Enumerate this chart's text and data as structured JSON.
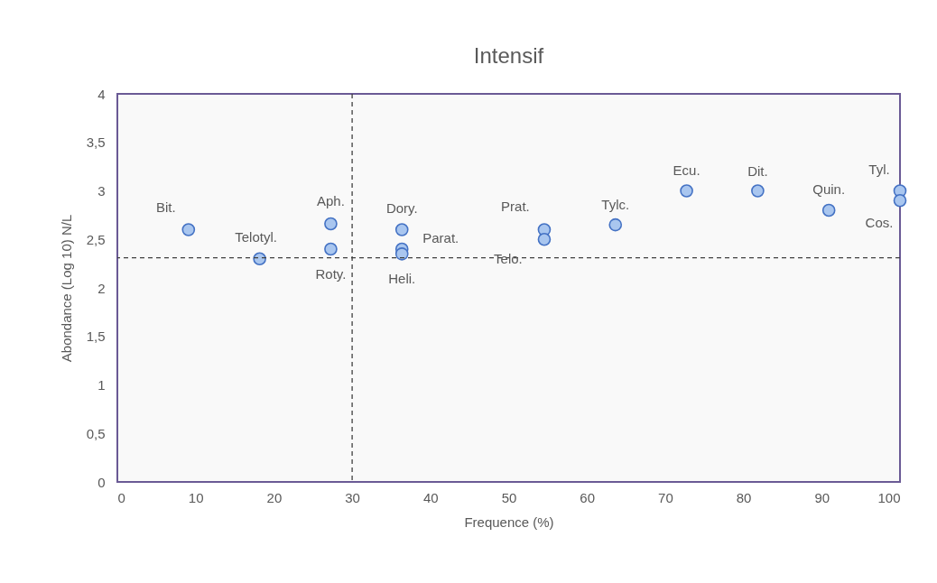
{
  "chart_data": {
    "type": "scatter",
    "title": "Intensif",
    "xlabel": "Frequence (%)",
    "ylabel": "Abondance (Log 10) N/L",
    "x": [
      9.09,
      18.18,
      27.27,
      27.27,
      36.36,
      36.36,
      36.36,
      54.55,
      54.55,
      63.64,
      72.73,
      81.82,
      90.91,
      100,
      100
    ],
    "series": [
      {
        "color": "#a9c6ef",
        "values": [
          2.6,
          2.3,
          2.66,
          2.4,
          2.6,
          2.4,
          2.35,
          2.6,
          2.5,
          2.65,
          3.0,
          3.0,
          2.8,
          3.0,
          2.9
        ]
      }
    ],
    "xlim": [
      0,
      100
    ],
    "xticks": [
      0,
      10,
      20,
      30,
      40,
      50,
      60,
      70,
      80,
      90,
      100
    ],
    "ylim": [
      0,
      4
    ],
    "yticks": [
      0,
      {
        "value": 0.5,
        "label": "0,5"
      },
      1,
      {
        "value": 1.5,
        "label": "1,5"
      },
      2,
      {
        "value": 2.5,
        "label": "2,5"
      },
      3,
      {
        "value": 3.5,
        "label": "3,5"
      },
      4
    ],
    "marker": "circle",
    "grid": false,
    "ref_lines": [
      {
        "axis": "x",
        "value": 30,
        "color": "#404040",
        "line_style": "dashed"
      },
      {
        "axis": "y",
        "value": 2.31,
        "color": "#404040",
        "line_style": "dashed"
      }
    ],
    "annotations": [
      {
        "text": "Bit.",
        "x": 9.09,
        "y": 2.6
      },
      {
        "text": "Telotyl.",
        "x": 18.18,
        "y": 2.3
      },
      {
        "text": "Aph.",
        "x": 27.27,
        "y": 2.66
      },
      {
        "text": "Roty.",
        "x": 27.27,
        "y": 2.4
      },
      {
        "text": "Dory.",
        "x": 36.36,
        "y": 2.6
      },
      {
        "text": "Parat.",
        "x": 36.36,
        "y": 2.4
      },
      {
        "text": "Heli.",
        "x": 36.36,
        "y": 2.35
      },
      {
        "text": "Prat.",
        "x": 54.55,
        "y": 2.6
      },
      {
        "text": "Telo.",
        "x": 54.55,
        "y": 2.5
      },
      {
        "text": "Tylc.",
        "x": 63.64,
        "y": 2.65
      },
      {
        "text": "Ecu.",
        "x": 72.73,
        "y": 3.0
      },
      {
        "text": "Dit.",
        "x": 81.82,
        "y": 3.0
      },
      {
        "text": "Quin.",
        "x": 90.91,
        "y": 2.8
      },
      {
        "text": "Tyl.",
        "x": 100,
        "y": 3.0
      },
      {
        "text": "Cos.",
        "x": 100,
        "y": 2.9
      }
    ]
  }
}
